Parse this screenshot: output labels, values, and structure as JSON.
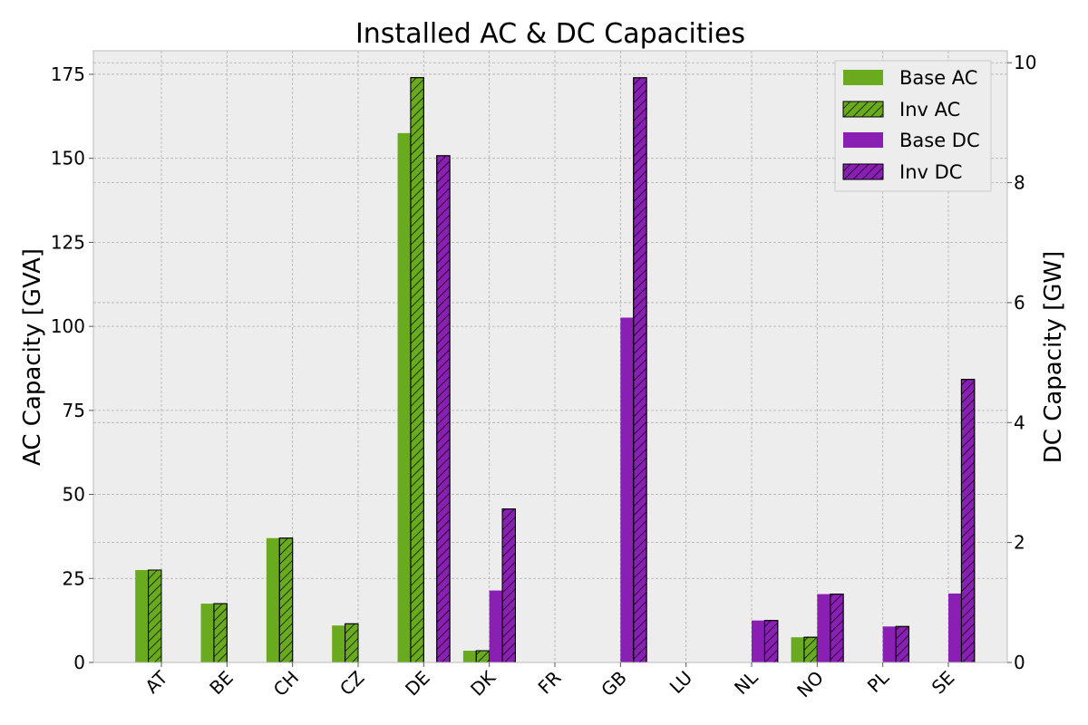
{
  "chart_data": {
    "type": "bar",
    "title": "Installed AC & DC Capacities",
    "ylabel_left": "AC Capacity [GVA]",
    "ylabel_right": "DC Capacity [GW]",
    "ylim_left": [
      0,
      182
    ],
    "ylim_right": [
      0,
      10.2
    ],
    "yticks_left": [
      "0",
      "25",
      "50",
      "75",
      "100",
      "125",
      "150",
      "175"
    ],
    "yticks_right": [
      "0",
      "2",
      "4",
      "6",
      "8",
      "10"
    ],
    "categories": [
      "AT",
      "BE",
      "CH",
      "CZ",
      "DE",
      "DK",
      "FR",
      "GB",
      "LU",
      "NL",
      "NO",
      "PL",
      "SE"
    ],
    "grid": true,
    "legend_position": "top-right",
    "series": [
      {
        "name": "Base AC",
        "axis": "left",
        "color": "#6aaa1e",
        "hatched": false,
        "values": [
          27.5,
          17.5,
          37,
          11,
          157.5,
          3.5,
          0,
          0,
          0,
          0,
          7.5,
          0,
          0
        ]
      },
      {
        "name": "Inv AC",
        "axis": "left",
        "color": "#6aaa1e",
        "hatched": true,
        "values": [
          27.5,
          17.5,
          37,
          11.5,
          174,
          3.5,
          0,
          0,
          0,
          0,
          7.5,
          0,
          0
        ]
      },
      {
        "name": "Base DC",
        "axis": "right",
        "color": "#8a1fb4",
        "hatched": false,
        "values": [
          0,
          0,
          0,
          0,
          0,
          1.2,
          0,
          5.75,
          0,
          0.7,
          1.14,
          0.6,
          1.15
        ]
      },
      {
        "name": "Inv DC",
        "axis": "right",
        "color": "#8a1fb4",
        "hatched": true,
        "values": [
          0,
          0,
          0,
          0,
          8.45,
          2.56,
          0,
          9.75,
          0,
          0.7,
          1.14,
          0.6,
          4.72
        ]
      }
    ]
  }
}
